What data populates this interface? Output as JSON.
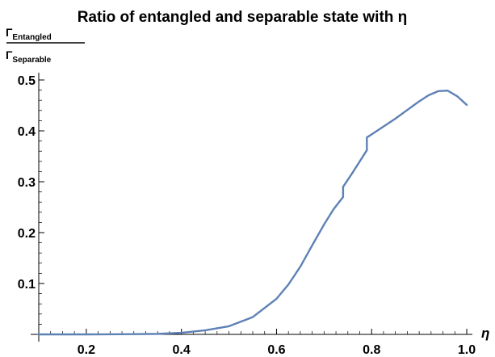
{
  "chart_data": {
    "type": "line",
    "title": "Ratio of entangled and separable state with η",
    "xlabel": "η",
    "ylabel": {
      "numerator_symbol": "Γ",
      "numerator_sub": "Entangled",
      "denominator_symbol": "Γ",
      "denominator_sub": "Separable"
    },
    "xlim": [
      0.1,
      1.0
    ],
    "ylim": [
      0,
      0.5
    ],
    "x_ticks": [
      {
        "value": 0.2,
        "label": "0.2"
      },
      {
        "value": 0.4,
        "label": "0.4"
      },
      {
        "value": 0.6,
        "label": "0.6"
      },
      {
        "value": 0.8,
        "label": "0.8"
      },
      {
        "value": 1.0,
        "label": "1.0"
      }
    ],
    "y_ticks": [
      {
        "value": 0.1,
        "label": "0.1"
      },
      {
        "value": 0.2,
        "label": "0.2"
      },
      {
        "value": 0.3,
        "label": "0.3"
      },
      {
        "value": 0.4,
        "label": "0.4"
      },
      {
        "value": 0.5,
        "label": "0.5"
      }
    ],
    "grid": false,
    "series": [
      {
        "color": "#5e81b5",
        "x": [
          0.1,
          0.2,
          0.3,
          0.35,
          0.4,
          0.45,
          0.5,
          0.55,
          0.6,
          0.625,
          0.65,
          0.675,
          0.7,
          0.72,
          0.74,
          0.74,
          0.76,
          0.79,
          0.79,
          0.8,
          0.85,
          0.9,
          0.92,
          0.94,
          0.96,
          0.98,
          1.0
        ],
        "y": [
          0.0,
          0.0,
          0.0005,
          0.001,
          0.003,
          0.008,
          0.016,
          0.034,
          0.07,
          0.098,
          0.133,
          0.175,
          0.216,
          0.246,
          0.27,
          0.29,
          0.318,
          0.362,
          0.387,
          0.393,
          0.424,
          0.458,
          0.47,
          0.478,
          0.479,
          0.468,
          0.451
        ]
      }
    ]
  }
}
